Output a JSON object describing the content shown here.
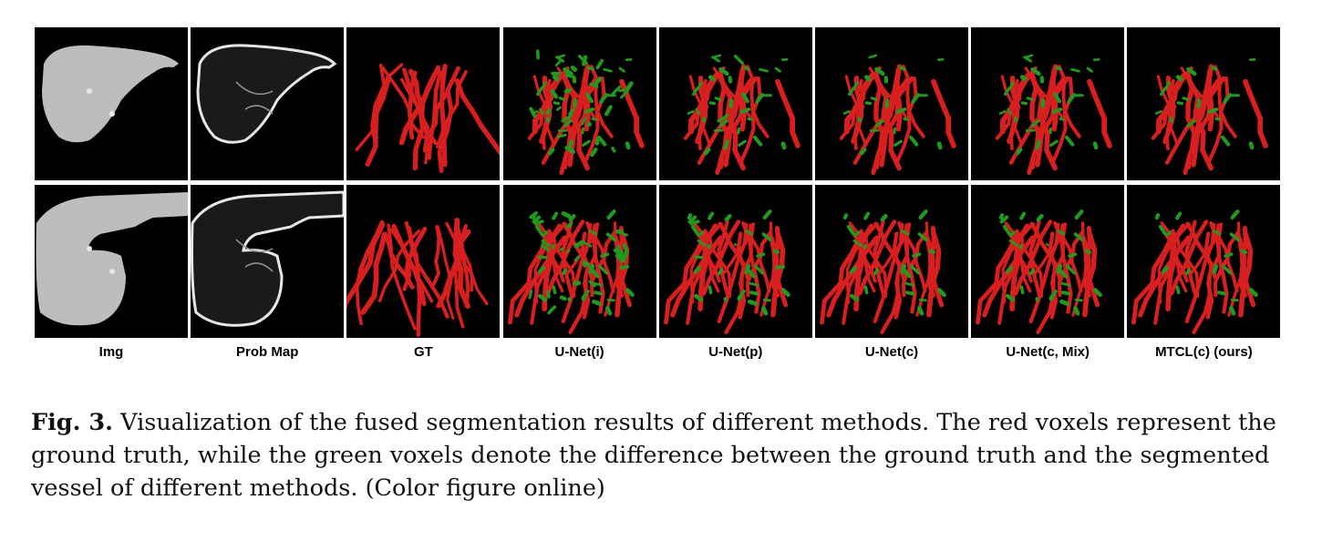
{
  "figure": {
    "columns": [
      {
        "key": "img",
        "label": "Img"
      },
      {
        "key": "prob",
        "label": "Prob Map"
      },
      {
        "key": "gt",
        "label": "GT"
      },
      {
        "key": "unet_i",
        "label": "U-Net(i)"
      },
      {
        "key": "unet_p",
        "label": "U-Net(p)"
      },
      {
        "key": "unet_c",
        "label": "U-Net(c)"
      },
      {
        "key": "unet_cmix",
        "label": "U-Net(c, Mix)"
      },
      {
        "key": "mtcl",
        "label": "MTCL(c) (ours)"
      }
    ],
    "rows": 2,
    "colors": {
      "ground_truth": "#d81f1f",
      "difference": "#1f9a1f",
      "background": "#000000",
      "tissue": "#bdbdbd"
    }
  },
  "caption": {
    "label": "Fig. 3.",
    "text": "Visualization of the fused segmentation results of different methods. The red voxels represent the ground truth, while the green voxels denote the difference between the ground truth and the segmented vessel of different methods. (Color figure online)"
  }
}
